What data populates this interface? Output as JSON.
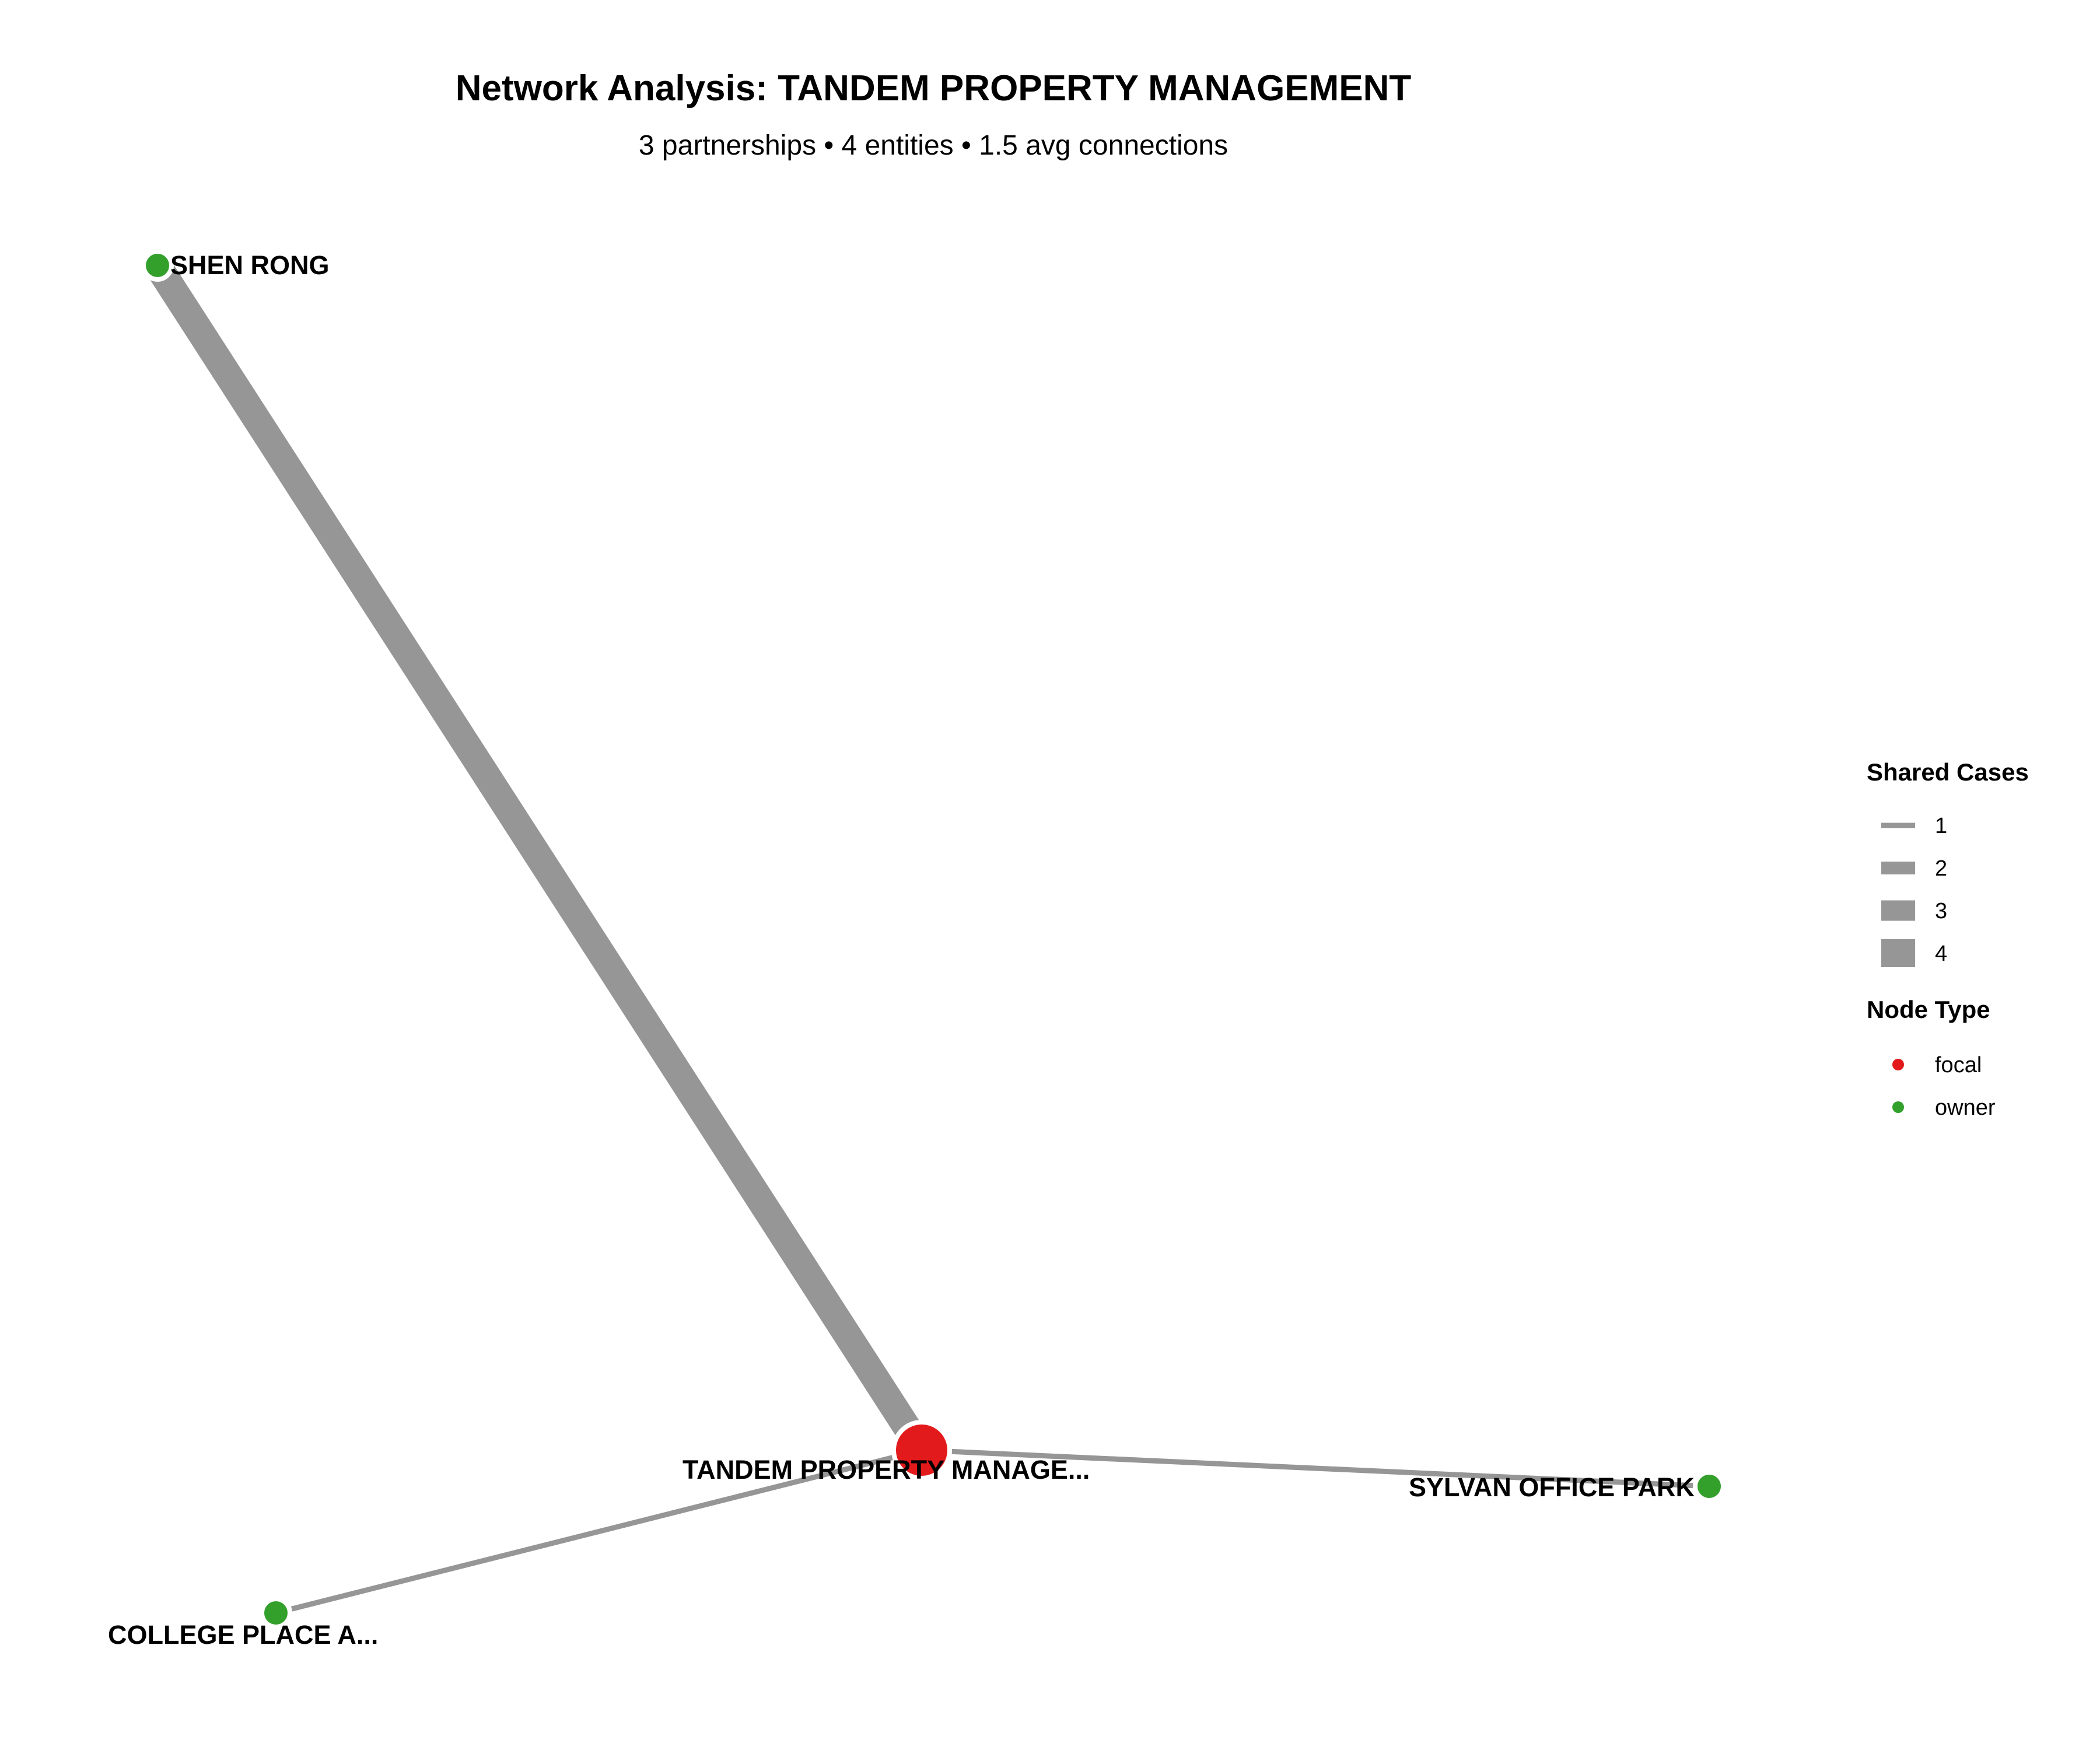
{
  "header": {
    "title": "Network Analysis: TANDEM PROPERTY MANAGEMENT",
    "subtitle": "3 partnerships • 4 entities • 1.5 avg connections"
  },
  "colors": {
    "focal": "#e31a1c",
    "owner": "#33a02c",
    "edge": "#969696"
  },
  "nodes": [
    {
      "id": "tandem",
      "label": "TANDEM PROPERTY MANAGE...",
      "type": "focal"
    },
    {
      "id": "shen",
      "label": "SHEN RONG",
      "type": "owner"
    },
    {
      "id": "college",
      "label": "COLLEGE PLACE A...",
      "type": "owner"
    },
    {
      "id": "sylvan",
      "label": "SYLVAN OFFICE PARK",
      "type": "owner"
    }
  ],
  "edges": [
    {
      "from": "tandem",
      "to": "shen",
      "shared_cases": 4
    },
    {
      "from": "tandem",
      "to": "college",
      "shared_cases": 1
    },
    {
      "from": "tandem",
      "to": "sylvan",
      "shared_cases": 1
    }
  ],
  "legend": {
    "edges_title": "Shared Cases",
    "edge_items": [
      {
        "label": "1",
        "value": 1
      },
      {
        "label": "2",
        "value": 2
      },
      {
        "label": "3",
        "value": 3
      },
      {
        "label": "4",
        "value": 4
      }
    ],
    "nodes_title": "Node Type",
    "node_items": [
      {
        "label": "focal",
        "type": "focal"
      },
      {
        "label": "owner",
        "type": "owner"
      }
    ]
  }
}
